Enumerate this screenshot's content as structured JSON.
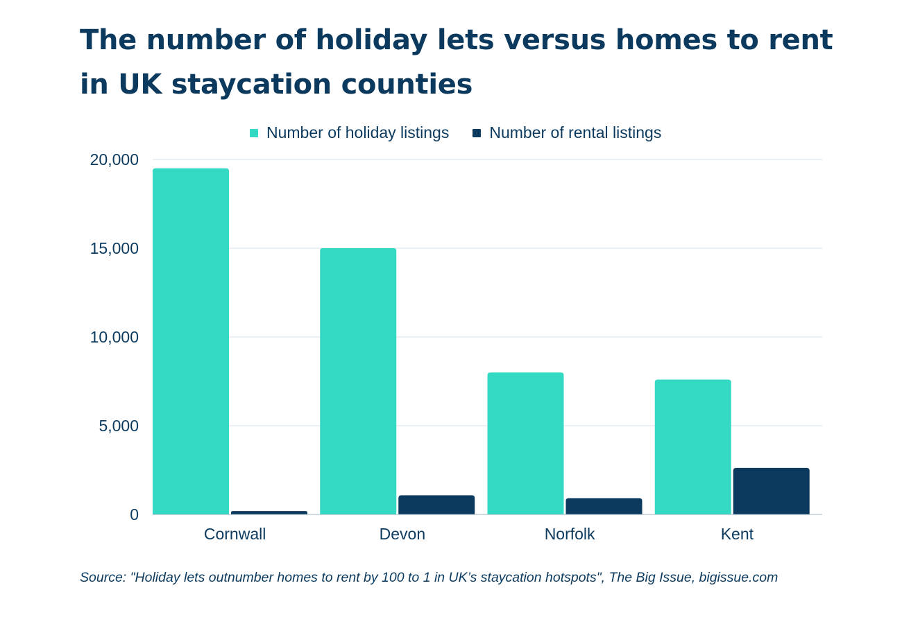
{
  "title": "The number of holiday lets versus homes to rent in UK staycation counties",
  "source": "Source: \"Holiday lets outnumber homes to rent by 100 to 1 in UK’s staycation hotspots\", The Big Issue, bigissue.com",
  "colors": {
    "holiday": "#34d9c3",
    "rental": "#0b3a5e",
    "text": "#0b3a5e",
    "grid": "#d6e1e8"
  },
  "chart_data": {
    "type": "bar",
    "categories": [
      "Cornwall",
      "Devon",
      "Norfolk",
      "Kent"
    ],
    "series": [
      {
        "name": "Number of holiday listings",
        "values": [
          19500,
          15000,
          8000,
          7600
        ]
      },
      {
        "name": "Number of rental listings",
        "values": [
          190,
          1080,
          920,
          2620
        ]
      }
    ],
    "ylim": [
      0,
      20000
    ],
    "yticks": [
      0,
      5000,
      10000,
      15000,
      20000
    ],
    "ytick_labels": [
      "0",
      "5,000",
      "10,000",
      "15,000",
      "20,000"
    ],
    "grid": true,
    "legend": "top-center",
    "xlabel": "",
    "ylabel": ""
  }
}
